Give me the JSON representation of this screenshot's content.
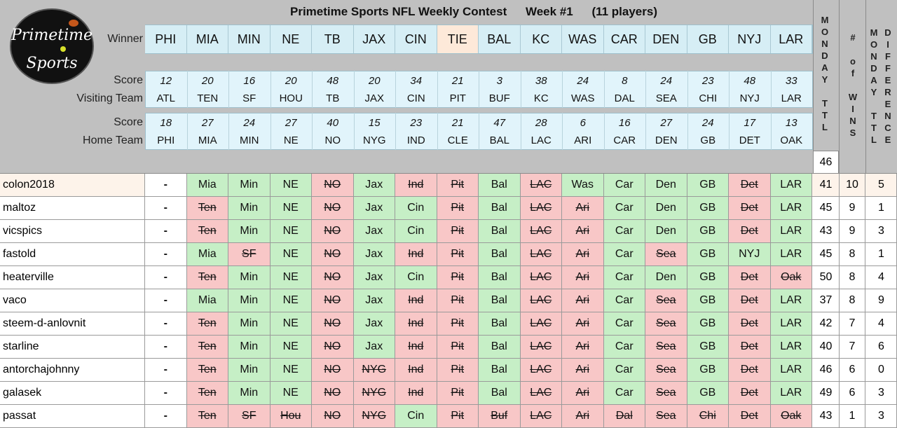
{
  "title": "Primetime Sports NFL Weekly Contest",
  "week": "Week #1",
  "players_note": "(11 players)",
  "logo": {
    "line1": "Primetime",
    "line2": "Sports"
  },
  "labels": {
    "winner": "Winner",
    "score_visit": "Score",
    "visiting": "Visiting Team",
    "score_home": "Score",
    "home": "Home Team"
  },
  "col_headers": {
    "monday_ttl": [
      "M",
      "O",
      "N",
      "D",
      "A",
      "Y",
      "",
      "T",
      "T",
      "L"
    ],
    "wins": [
      "#",
      "",
      "o",
      "f",
      "",
      "W",
      "I",
      "N",
      "S"
    ],
    "mttl": [
      "M",
      "O",
      "N",
      "D",
      "A",
      "Y",
      "",
      "T",
      "T",
      "L"
    ],
    "diff": [
      "D",
      "I",
      "F",
      "F",
      "E",
      "R",
      "E",
      "N",
      "C",
      "E"
    ]
  },
  "monday_total": "46",
  "games": [
    {
      "winner": "PHI",
      "tie": false,
      "vscore": "12",
      "vteam": "ATL",
      "hscore": "18",
      "hteam": "PHI"
    },
    {
      "winner": "MIA",
      "tie": false,
      "vscore": "20",
      "vteam": "TEN",
      "hscore": "27",
      "hteam": "MIA"
    },
    {
      "winner": "MIN",
      "tie": false,
      "vscore": "16",
      "vteam": "SF",
      "hscore": "24",
      "hteam": "MIN"
    },
    {
      "winner": "NE",
      "tie": false,
      "vscore": "20",
      "vteam": "HOU",
      "hscore": "27",
      "hteam": "NE"
    },
    {
      "winner": "TB",
      "tie": false,
      "vscore": "48",
      "vteam": "TB",
      "hscore": "40",
      "hteam": "NO"
    },
    {
      "winner": "JAX",
      "tie": false,
      "vscore": "20",
      "vteam": "JAX",
      "hscore": "15",
      "hteam": "NYG"
    },
    {
      "winner": "CIN",
      "tie": false,
      "vscore": "34",
      "vteam": "CIN",
      "hscore": "23",
      "hteam": "IND"
    },
    {
      "winner": "TIE",
      "tie": true,
      "vscore": "21",
      "vteam": "PIT",
      "hscore": "21",
      "hteam": "CLE"
    },
    {
      "winner": "BAL",
      "tie": false,
      "vscore": "3",
      "vteam": "BUF",
      "hscore": "47",
      "hteam": "BAL"
    },
    {
      "winner": "KC",
      "tie": false,
      "vscore": "38",
      "vteam": "KC",
      "hscore": "28",
      "hteam": "LAC"
    },
    {
      "winner": "WAS",
      "tie": false,
      "vscore": "24",
      "vteam": "WAS",
      "hscore": "6",
      "hteam": "ARI"
    },
    {
      "winner": "CAR",
      "tie": false,
      "vscore": "8",
      "vteam": "DAL",
      "hscore": "16",
      "hteam": "CAR"
    },
    {
      "winner": "DEN",
      "tie": false,
      "vscore": "24",
      "vteam": "SEA",
      "hscore": "27",
      "hteam": "DEN"
    },
    {
      "winner": "GB",
      "tie": false,
      "vscore": "23",
      "vteam": "CHI",
      "hscore": "24",
      "hteam": "GB"
    },
    {
      "winner": "NYJ",
      "tie": false,
      "vscore": "48",
      "vteam": "NYJ",
      "hscore": "17",
      "hteam": "DET"
    },
    {
      "winner": "LAR",
      "tie": false,
      "vscore": "33",
      "vteam": "LAR",
      "hscore": "13",
      "hteam": "OAK"
    }
  ],
  "players": [
    {
      "name": "colon2018",
      "highlight": true,
      "picks": [
        "-",
        "Mia",
        "Min",
        "NE",
        "NO",
        "Jax",
        "Ind",
        "Pit",
        "Bal",
        "LAC",
        "Was",
        "Car",
        "Den",
        "GB",
        "Det",
        "LAR"
      ],
      "status": [
        "w",
        "g",
        "g",
        "g",
        "r",
        "g",
        "r",
        "r",
        "g",
        "r",
        "g",
        "g",
        "g",
        "g",
        "r",
        "g"
      ],
      "monday": "41",
      "wins": "10",
      "diff": "5"
    },
    {
      "name": "maltoz",
      "highlight": false,
      "picks": [
        "-",
        "Ten",
        "Min",
        "NE",
        "NO",
        "Jax",
        "Cin",
        "Pit",
        "Bal",
        "LAC",
        "Ari",
        "Car",
        "Den",
        "GB",
        "Det",
        "LAR"
      ],
      "status": [
        "w",
        "r",
        "g",
        "g",
        "r",
        "g",
        "g",
        "r",
        "g",
        "r",
        "r",
        "g",
        "g",
        "g",
        "r",
        "g"
      ],
      "monday": "45",
      "wins": "9",
      "diff": "1"
    },
    {
      "name": "vicspics",
      "highlight": false,
      "picks": [
        "-",
        "Ten",
        "Min",
        "NE",
        "NO",
        "Jax",
        "Cin",
        "Pit",
        "Bal",
        "LAC",
        "Ari",
        "Car",
        "Den",
        "GB",
        "Det",
        "LAR"
      ],
      "status": [
        "w",
        "r",
        "g",
        "g",
        "r",
        "g",
        "g",
        "r",
        "g",
        "r",
        "r",
        "g",
        "g",
        "g",
        "r",
        "g"
      ],
      "monday": "43",
      "wins": "9",
      "diff": "3"
    },
    {
      "name": "fastold",
      "highlight": false,
      "picks": [
        "-",
        "Mia",
        "SF",
        "NE",
        "NO",
        "Jax",
        "Ind",
        "Pit",
        "Bal",
        "LAC",
        "Ari",
        "Car",
        "Sea",
        "GB",
        "NYJ",
        "LAR"
      ],
      "status": [
        "w",
        "g",
        "r",
        "g",
        "r",
        "g",
        "r",
        "r",
        "g",
        "r",
        "r",
        "g",
        "r",
        "g",
        "g",
        "g"
      ],
      "monday": "45",
      "wins": "8",
      "diff": "1"
    },
    {
      "name": "heaterville",
      "highlight": false,
      "picks": [
        "-",
        "Ten",
        "Min",
        "NE",
        "NO",
        "Jax",
        "Cin",
        "Pit",
        "Bal",
        "LAC",
        "Ari",
        "Car",
        "Den",
        "GB",
        "Det",
        "Oak"
      ],
      "status": [
        "w",
        "r",
        "g",
        "g",
        "r",
        "g",
        "g",
        "r",
        "g",
        "r",
        "r",
        "g",
        "g",
        "g",
        "r",
        "r"
      ],
      "monday": "50",
      "wins": "8",
      "diff": "4"
    },
    {
      "name": "vaco",
      "highlight": false,
      "picks": [
        "-",
        "Mia",
        "Min",
        "NE",
        "NO",
        "Jax",
        "Ind",
        "Pit",
        "Bal",
        "LAC",
        "Ari",
        "Car",
        "Sea",
        "GB",
        "Det",
        "LAR"
      ],
      "status": [
        "w",
        "g",
        "g",
        "g",
        "r",
        "g",
        "r",
        "r",
        "g",
        "r",
        "r",
        "g",
        "r",
        "g",
        "r",
        "g"
      ],
      "monday": "37",
      "wins": "8",
      "diff": "9"
    },
    {
      "name": "steem-d-anlovnit",
      "highlight": false,
      "picks": [
        "-",
        "Ten",
        "Min",
        "NE",
        "NO",
        "Jax",
        "Ind",
        "Pit",
        "Bal",
        "LAC",
        "Ari",
        "Car",
        "Sea",
        "GB",
        "Det",
        "LAR"
      ],
      "status": [
        "w",
        "r",
        "g",
        "g",
        "r",
        "g",
        "r",
        "r",
        "g",
        "r",
        "r",
        "g",
        "r",
        "g",
        "r",
        "g"
      ],
      "monday": "42",
      "wins": "7",
      "diff": "4"
    },
    {
      "name": "starline",
      "highlight": false,
      "picks": [
        "-",
        "Ten",
        "Min",
        "NE",
        "NO",
        "Jax",
        "Ind",
        "Pit",
        "Bal",
        "LAC",
        "Ari",
        "Car",
        "Sea",
        "GB",
        "Det",
        "LAR"
      ],
      "status": [
        "w",
        "r",
        "g",
        "g",
        "r",
        "g",
        "r",
        "r",
        "g",
        "r",
        "r",
        "g",
        "r",
        "g",
        "r",
        "g"
      ],
      "monday": "40",
      "wins": "7",
      "diff": "6"
    },
    {
      "name": "antorchajohnny",
      "highlight": false,
      "picks": [
        "-",
        "Ten",
        "Min",
        "NE",
        "NO",
        "NYG",
        "Ind",
        "Pit",
        "Bal",
        "LAC",
        "Ari",
        "Car",
        "Sea",
        "GB",
        "Det",
        "LAR"
      ],
      "status": [
        "w",
        "r",
        "g",
        "g",
        "r",
        "r",
        "r",
        "r",
        "g",
        "r",
        "r",
        "g",
        "r",
        "g",
        "r",
        "g"
      ],
      "monday": "46",
      "wins": "6",
      "diff": "0"
    },
    {
      "name": "galasek",
      "highlight": false,
      "picks": [
        "-",
        "Ten",
        "Min",
        "NE",
        "NO",
        "NYG",
        "Ind",
        "Pit",
        "Bal",
        "LAC",
        "Ari",
        "Car",
        "Sea",
        "GB",
        "Det",
        "LAR"
      ],
      "status": [
        "w",
        "r",
        "g",
        "g",
        "r",
        "r",
        "r",
        "r",
        "g",
        "r",
        "r",
        "g",
        "r",
        "g",
        "r",
        "g"
      ],
      "monday": "49",
      "wins": "6",
      "diff": "3"
    },
    {
      "name": "passat",
      "highlight": false,
      "picks": [
        "-",
        "Ten",
        "SF",
        "Hou",
        "NO",
        "NYG",
        "Cin",
        "Pit",
        "Buf",
        "LAC",
        "Ari",
        "Dal",
        "Sea",
        "Chi",
        "Det",
        "Oak"
      ],
      "status": [
        "w",
        "r",
        "r",
        "r",
        "r",
        "r",
        "g",
        "r",
        "r",
        "r",
        "r",
        "r",
        "r",
        "r",
        "r",
        "r"
      ],
      "monday": "43",
      "wins": "1",
      "diff": "3"
    }
  ],
  "colors": {
    "correct": "#c6efc6",
    "wrong": "#f8c7c7",
    "header": "#c0c0c0",
    "winner_cell": "#d6eef5",
    "tie_cell": "#fde9d9",
    "highlight_row": "#fdf3ea"
  }
}
